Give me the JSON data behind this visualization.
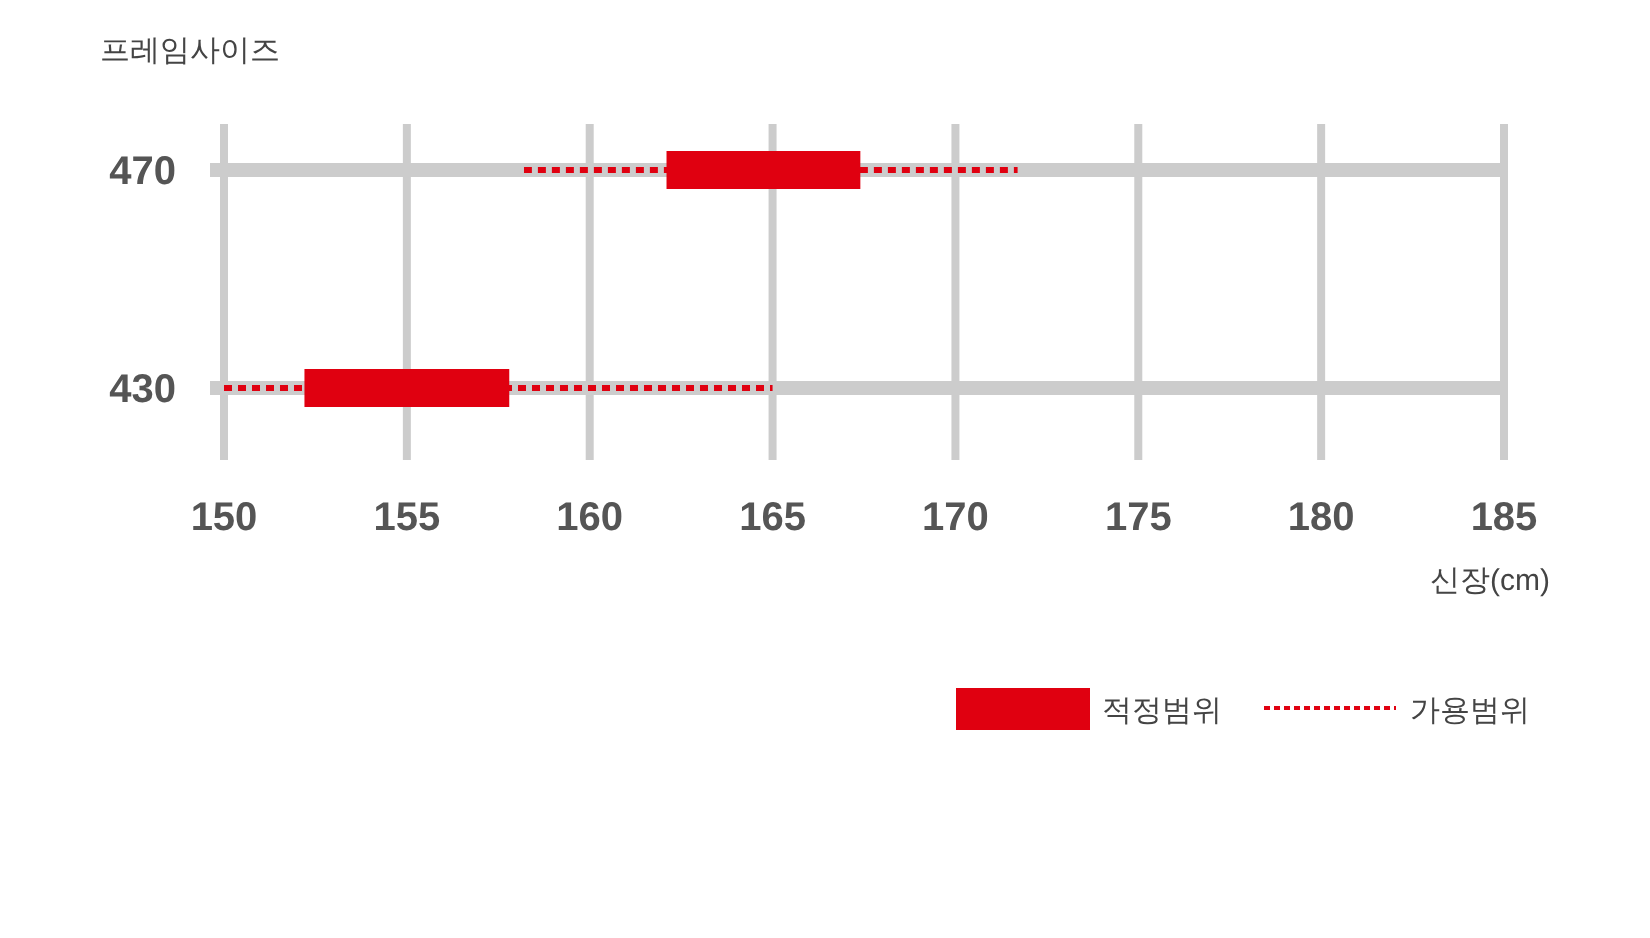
{
  "chart_data": {
    "type": "bar",
    "orientation": "horizontal",
    "ylabel": "프레임사이즈",
    "xlabel": "신장(cm)",
    "categories": [
      "470",
      "430"
    ],
    "xlim": [
      150,
      185
    ],
    "xticks": [
      150,
      155,
      160,
      165,
      170,
      175,
      180,
      185
    ],
    "grid": true,
    "legend": "bottom right",
    "series": [
      {
        "name": "적정범위",
        "color": "#e00010",
        "base": [
          162.1,
          152.2
        ],
        "values": [
          5.3,
          5.6
        ]
      },
      {
        "name": "가용범위",
        "color": "#e00010",
        "line_style": "dotted",
        "base": [
          158.2,
          150
        ],
        "values": [
          13.5,
          15.0
        ]
      }
    ]
  }
}
